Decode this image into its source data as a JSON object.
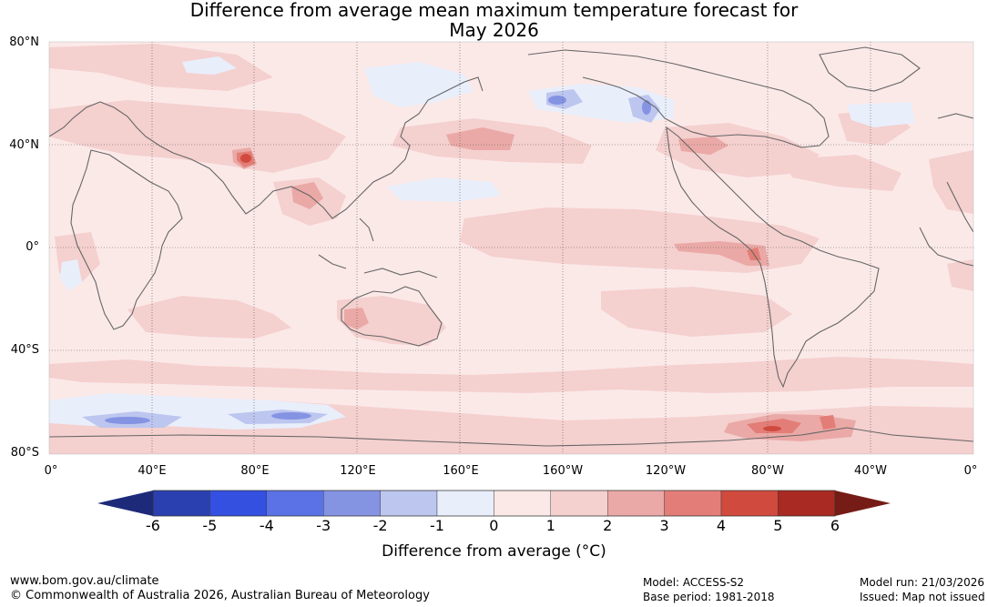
{
  "title": {
    "line1": "Difference from average mean maximum temperature forecast for",
    "line2": "May 2026"
  },
  "map": {
    "lat_labels": [
      "80°N",
      "40°N",
      "0°",
      "40°S",
      "80°S"
    ],
    "lon_labels": [
      "0°",
      "40°E",
      "80°E",
      "120°E",
      "160°E",
      "160°W",
      "120°W",
      "80°W",
      "40°W",
      "0°"
    ],
    "colors": {
      "ocean_background": "#fbe9e8",
      "anomaly_plus1_to_2": "#f4d0cf",
      "anomaly_plus2_to_3": "#eaa9a6",
      "anomaly_plus3_to_4": "#e27e77",
      "anomaly_plus4_to_5": "#d14a3e",
      "anomaly_minus0_to_1": "#e9eefb",
      "anomaly_minus1_to_2": "#bcc6ef",
      "anomaly_minus2_to_3": "#8593e3",
      "coastline": "#666666",
      "gridline": "#555555"
    }
  },
  "colorbar": {
    "ticks": [
      "-6",
      "-5",
      "-4",
      "-3",
      "-2",
      "-1",
      "0",
      "1",
      "2",
      "3",
      "4",
      "5",
      "6"
    ],
    "colors": [
      "#1d2a7a",
      "#2b40b0",
      "#3350e0",
      "#5a72e6",
      "#8593e3",
      "#bcc6ef",
      "#e9eefb",
      "#fbe9e8",
      "#f4d0cf",
      "#eaa9a6",
      "#e27e77",
      "#d14a3e",
      "#a82a22",
      "#761c16"
    ],
    "label": "Difference from average (°C)"
  },
  "footer": {
    "website": "www.bom.gov.au/climate",
    "copyright": "© Commonwealth of Australia 2026, Australian Bureau of Meteorology",
    "model": "Model: ACCESS-S2",
    "base_period": "Base period: 1981-2018",
    "model_run": "Model run: 21/03/2026",
    "issued": "Issued: Map not issued"
  }
}
